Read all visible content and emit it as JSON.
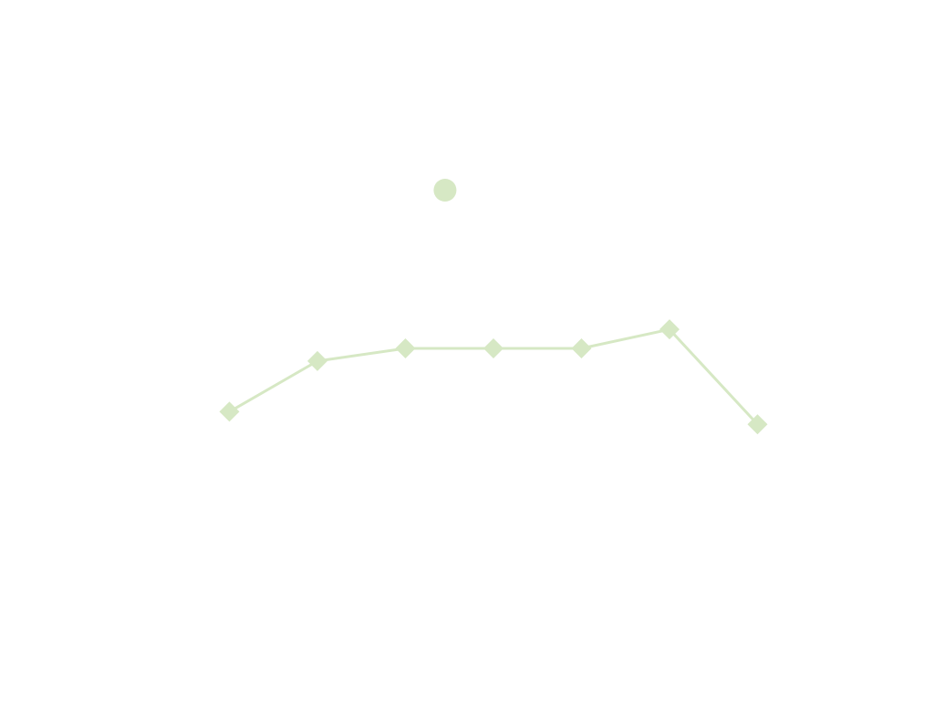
{
  "chart_data": {
    "type": "line",
    "title": "",
    "xlabel": "",
    "ylabel": "",
    "x": [
      1,
      2,
      3,
      4,
      5,
      6,
      7
    ],
    "xlim": [
      0,
      8
    ],
    "ylim": [
      0,
      10
    ],
    "grid": false,
    "series": [
      {
        "name": "",
        "values": [
          4.0,
          4.8,
          5.0,
          5.0,
          5.0,
          5.3,
          3.8
        ],
        "marker": "diamond",
        "color": "#d6e8c4"
      }
    ],
    "annotations": [
      {
        "type": "dot",
        "x": 3.45,
        "y": 7.5,
        "color": "#d6e8c4"
      }
    ]
  }
}
